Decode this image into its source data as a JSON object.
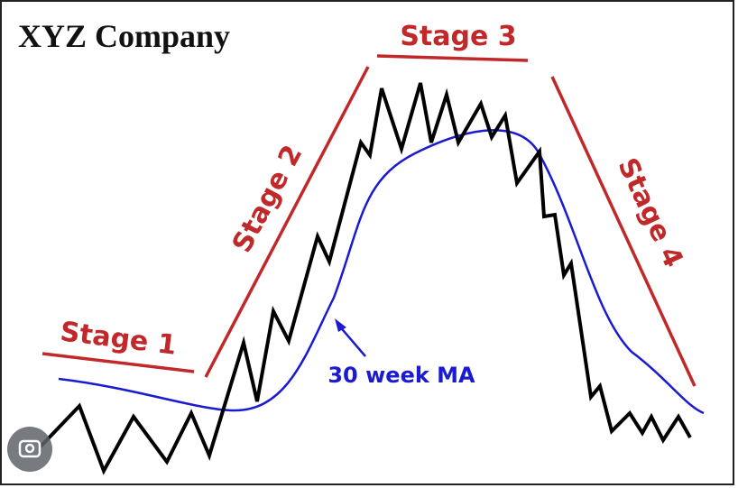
{
  "title": "XYZ Company",
  "stages": [
    "Stage 1",
    "Stage 2",
    "Stage 3",
    "Stage 4"
  ],
  "ma_label": "30 week MA"
}
